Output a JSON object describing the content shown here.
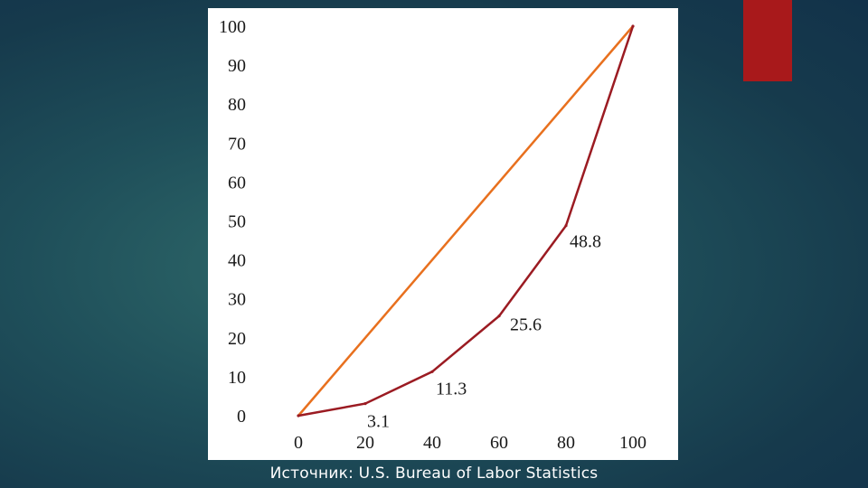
{
  "source_note": "Источник: U.S. Bureau of Labor Statistics",
  "colors": {
    "background": "#1f4f5a",
    "accent": "#a8191b",
    "equality_line": "#e8701e",
    "lorenz_curve": "#9b1b22"
  },
  "chart_data": {
    "type": "line",
    "title": "",
    "xlabel": "",
    "ylabel": "",
    "xlim": [
      0,
      100
    ],
    "ylim": [
      0,
      100
    ],
    "x_ticks": [
      "0",
      "20",
      "40",
      "60",
      "80",
      "100"
    ],
    "y_ticks": [
      "0",
      "10",
      "20",
      "30",
      "40",
      "50",
      "60",
      "70",
      "80",
      "90",
      "100"
    ],
    "grid": false,
    "series": [
      {
        "key": "equality",
        "x": [
          0,
          100
        ],
        "y": [
          0,
          100
        ]
      },
      {
        "key": "lorenz",
        "x": [
          0,
          20,
          40,
          60,
          80,
          100
        ],
        "y": [
          0,
          3.1,
          11.3,
          25.6,
          48.8,
          100
        ],
        "labels": [
          {
            "x": 20,
            "y": 3.1,
            "text": "3.1"
          },
          {
            "x": 40,
            "y": 11.3,
            "text": "11.3"
          },
          {
            "x": 60,
            "y": 25.6,
            "text": "25.6"
          },
          {
            "x": 80,
            "y": 48.8,
            "text": "48.8"
          }
        ]
      }
    ]
  }
}
